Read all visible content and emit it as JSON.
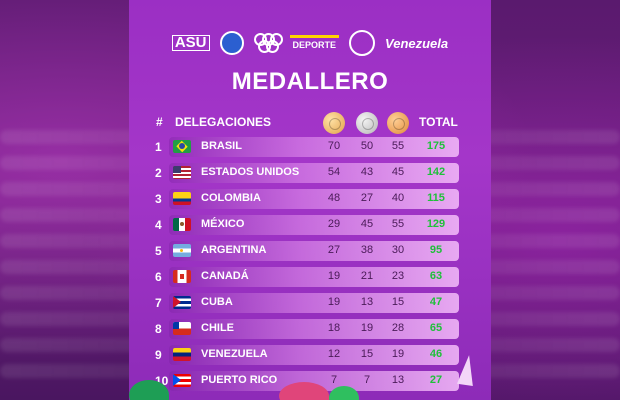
{
  "title": "MEDALLERO",
  "logos": {
    "asu": "ASU",
    "deporte": "DEPORTE",
    "venezuela": "Venezuela"
  },
  "header": {
    "rank": "#",
    "delegations": "DELEGACIONES",
    "total": "TOTAL"
  },
  "medal_icons": [
    "gold-medal-icon",
    "silver-medal-icon",
    "bronze-medal-icon"
  ],
  "colors": {
    "panel": "#a436c9",
    "total_text": "#1fc03a",
    "gold": "#e2a24a",
    "silver": "#b5b5b5",
    "bronze": "#e08a3a"
  },
  "rows": [
    {
      "rank": "1",
      "country": "BRASIL",
      "gold": "70",
      "silver": "50",
      "bronze": "55",
      "total": "175",
      "flag": "brazil-flag-icon"
    },
    {
      "rank": "2",
      "country": "ESTADOS UNIDOS",
      "gold": "54",
      "silver": "43",
      "bronze": "45",
      "total": "142",
      "flag": "usa-flag-icon"
    },
    {
      "rank": "3",
      "country": "COLOMBIA",
      "gold": "48",
      "silver": "27",
      "bronze": "40",
      "total": "115",
      "flag": "colombia-flag-icon"
    },
    {
      "rank": "4",
      "country": "MÉXICO",
      "gold": "29",
      "silver": "45",
      "bronze": "55",
      "total": "129",
      "flag": "mexico-flag-icon"
    },
    {
      "rank": "5",
      "country": "ARGENTINA",
      "gold": "27",
      "silver": "38",
      "bronze": "30",
      "total": "95",
      "flag": "argentina-flag-icon"
    },
    {
      "rank": "6",
      "country": "CANADÁ",
      "gold": "19",
      "silver": "21",
      "bronze": "23",
      "total": "63",
      "flag": "canada-flag-icon"
    },
    {
      "rank": "7",
      "country": "CUBA",
      "gold": "19",
      "silver": "13",
      "bronze": "15",
      "total": "47",
      "flag": "cuba-flag-icon"
    },
    {
      "rank": "8",
      "country": "CHILE",
      "gold": "18",
      "silver": "19",
      "bronze": "28",
      "total": "65",
      "flag": "chile-flag-icon"
    },
    {
      "rank": "9",
      "country": "VENEZUELA",
      "gold": "12",
      "silver": "15",
      "bronze": "19",
      "total": "46",
      "flag": "venezuela-flag-icon"
    },
    {
      "rank": "10",
      "country": "PUERTO RICO",
      "gold": "7",
      "silver": "7",
      "bronze": "13",
      "total": "27",
      "flag": "puerto-rico-flag-icon"
    }
  ]
}
